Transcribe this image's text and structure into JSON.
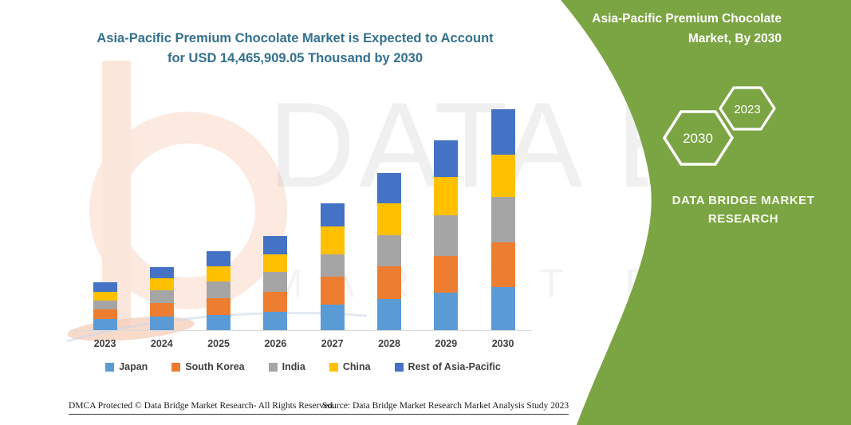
{
  "title": {
    "line1": "Asia-Pacific Premium Chocolate Market is Expected to Account",
    "line2": "for USD 14,465,909.05 Thousand by 2030",
    "color": "#33708F"
  },
  "watermark": {
    "line1": "DATA BRIDGE",
    "line2": "MARKET RESEARCH"
  },
  "side_panel": {
    "background": "#7BA443",
    "heading_line1": "Asia-Pacific Premium Chocolate",
    "heading_line2": "Market, By 2030",
    "hexagon_back_label": "2030",
    "hexagon_front_label": "2023",
    "brand_line1": "DATA BRIDGE MARKET",
    "brand_line2": "RESEARCH"
  },
  "chart_data": {
    "type": "bar",
    "stacked": true,
    "title": "Asia-Pacific Premium Chocolate Market is Expected to Account for USD 14,465,909.05 Thousand by 2030",
    "units": "USD Thousand",
    "total_2030": 14465909.05,
    "grid": false,
    "legend_position": "bottom",
    "categories": [
      "2023",
      "2024",
      "2025",
      "2026",
      "2027",
      "2028",
      "2029",
      "2030"
    ],
    "series": [
      {
        "name": "Japan",
        "color": "#5B9BD5",
        "values": [
          750000,
          870000,
          1010000,
          1185000,
          1660000,
          2040000,
          2445000,
          2830000
        ]
      },
      {
        "name": "South Korea",
        "color": "#ED7D31",
        "values": [
          600000,
          910000,
          1085000,
          1345000,
          1835000,
          2145000,
          2410000,
          2915000
        ]
      },
      {
        "name": "India",
        "color": "#A5A5A5",
        "values": [
          575000,
          840000,
          1085000,
          1270000,
          1480000,
          2005000,
          2685000,
          2985000
        ]
      },
      {
        "name": "China",
        "color": "#FFC000",
        "values": [
          575000,
          750000,
          1010000,
          1175000,
          1835000,
          2130000,
          2500000,
          2775000
        ]
      },
      {
        "name": "Rest of Asia-Pacific",
        "color": "#4472C4",
        "values": [
          645000,
          730000,
          960000,
          1165000,
          1480000,
          1975000,
          2390000,
          2960909.05
        ]
      }
    ]
  },
  "footer": {
    "left": "DMCA Protected © Data Bridge Market Research-  All Rights Reserved.",
    "right": "Source: Data Bridge Market Research  Market Analysis Study 2023"
  }
}
